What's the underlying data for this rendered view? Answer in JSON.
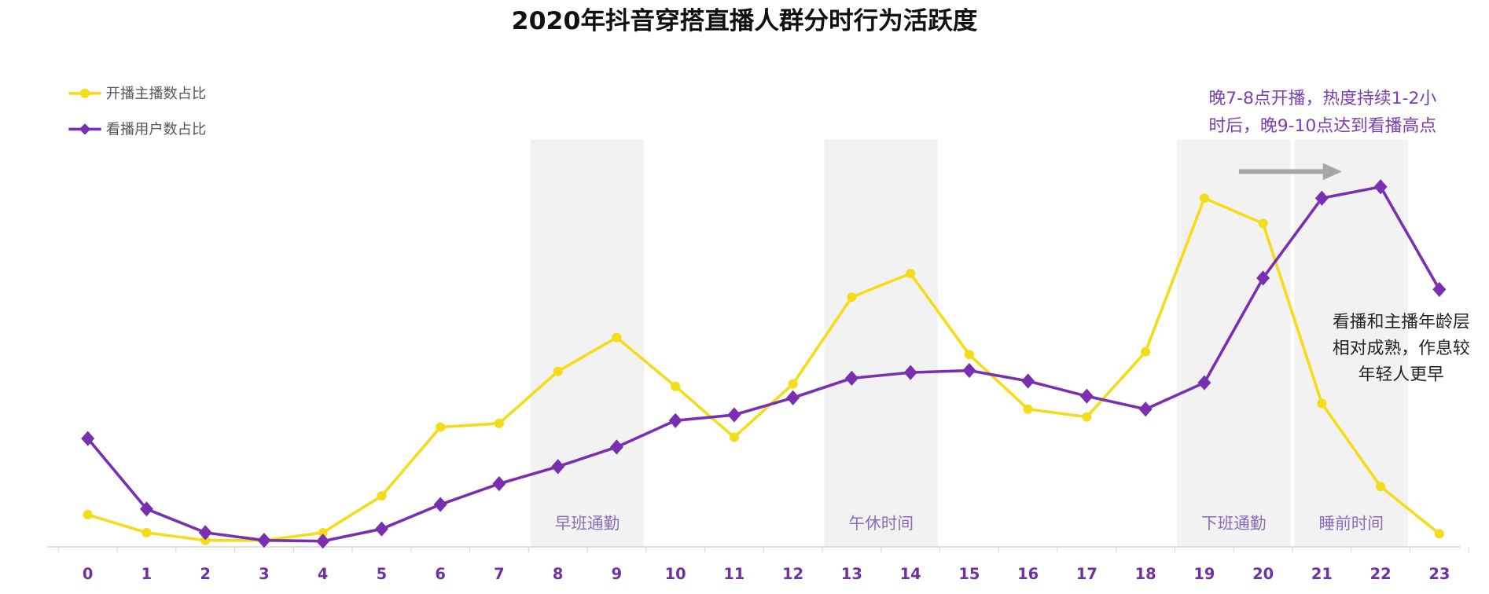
{
  "chart_data": {
    "type": "line",
    "title": "2020年抖音穿搭直播人群分时行为活跃度",
    "xlabel": "",
    "ylabel": "",
    "y_unit": "relative activity (no axis shown)",
    "ylim": [
      0,
      100
    ],
    "grid": false,
    "legend_placement": "top-left",
    "categories": [
      "0",
      "1",
      "2",
      "3",
      "4",
      "5",
      "6",
      "7",
      "8",
      "9",
      "10",
      "11",
      "12",
      "13",
      "14",
      "15",
      "16",
      "17",
      "18",
      "19",
      "20",
      "21",
      "22",
      "23"
    ],
    "series": [
      {
        "name": "开播主播数占比",
        "color": "#f5dc1a",
        "marker": "circle",
        "values": [
          7.9,
          3.5,
          1.6,
          1.6,
          3.5,
          12.5,
          29.4,
          30.3,
          43.1,
          51.4,
          39.4,
          26.9,
          40.0,
          61.3,
          67.1,
          47.2,
          33.8,
          31.9,
          47.9,
          85.6,
          79.4,
          35.2,
          14.8,
          3.2
        ]
      },
      {
        "name": "看播用户数占比",
        "color": "#7a2fb0",
        "marker": "diamond",
        "values": [
          26.6,
          9.3,
          3.5,
          1.6,
          1.4,
          4.4,
          10.4,
          15.5,
          19.7,
          24.5,
          31.0,
          32.4,
          36.6,
          41.4,
          42.8,
          43.3,
          40.7,
          37.0,
          33.8,
          40.3,
          66.0,
          85.6,
          88.4,
          63.2
        ]
      }
    ],
    "bands": [
      {
        "label": "早班通勤",
        "from": "8",
        "to": "9"
      },
      {
        "label": "午休时间",
        "from": "13",
        "to": "14"
      },
      {
        "label": "下班通勤",
        "from": "19",
        "to": "20"
      },
      {
        "label": "睡前时间",
        "from": "21",
        "to": "22"
      }
    ],
    "annotations": [
      {
        "lines": [
          "晚7-8点开播，热度持续1-2小",
          "时后，晚9-10点达到看播高点"
        ],
        "color": "#7a3fb0"
      },
      {
        "lines": [
          "看播和主播年龄层",
          "相对成熟，作息较",
          "年轻人更早"
        ],
        "color": "#222222"
      }
    ],
    "band_fill": "#f2f2f2",
    "tick_color": "#7030a0",
    "arrow_color": "#a6a6a6"
  }
}
